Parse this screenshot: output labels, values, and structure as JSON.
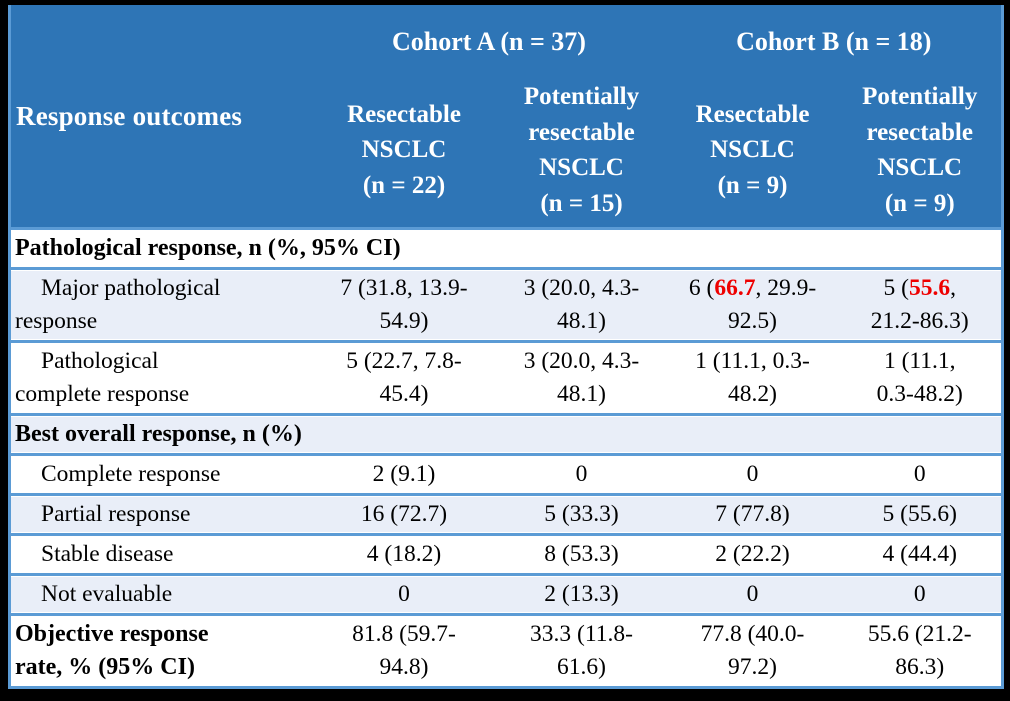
{
  "colors": {
    "header_bg": "#2E75B6",
    "band": "#E9EEF8",
    "grid": "#5B9BD5",
    "highlight": "#EE0000",
    "header_text": "#FFFFFF",
    "body_text": "#000000",
    "frame": "#000000"
  },
  "header": {
    "response_outcomes": "Response outcomes",
    "cohort_a": "Cohort A (n = 37)",
    "cohort_b": "Cohort B (n = 18)",
    "subheaders": [
      "Resectable\nNSCLC\n(n = 22)",
      "Potentially\nresectable\nNSCLC\n(n = 15)",
      "Resectable\nNSCLC\n(n = 9)",
      "Potentially\nresectable\nNSCLC\n(n = 9)"
    ]
  },
  "rows": [
    {
      "type": "section",
      "label": "Pathological response, n (%, 95% CI)"
    },
    {
      "type": "data",
      "label": "Major pathological\nresponse",
      "cells": [
        [
          "7 (31.8, 13.9-\n54.9)"
        ],
        [
          "3 (20.0, 4.3-\n48.1)"
        ],
        [
          "6 (",
          {
            "text": "66.7",
            "red": true
          },
          ", 29.9-\n92.5)"
        ],
        [
          "5 (",
          {
            "text": "55.6",
            "red": true
          },
          ",\n21.2-86.3)"
        ]
      ]
    },
    {
      "type": "data",
      "label": "Pathological\ncomplete response",
      "cells": [
        [
          "5 (22.7, 7.8-\n45.4)"
        ],
        [
          "3 (20.0, 4.3-\n48.1)"
        ],
        [
          "1 (11.1, 0.3-\n48.2)"
        ],
        [
          "1 (11.1,\n0.3-48.2)"
        ]
      ]
    },
    {
      "type": "section",
      "label": "Best overall response, n (%)"
    },
    {
      "type": "data",
      "label": "Complete response",
      "cells": [
        [
          "2 (9.1)"
        ],
        [
          "0"
        ],
        [
          "0"
        ],
        [
          "0"
        ]
      ]
    },
    {
      "type": "data",
      "label": "Partial response",
      "cells": [
        [
          "16 (72.7)"
        ],
        [
          "5 (33.3)"
        ],
        [
          "7 (77.8)"
        ],
        [
          "5 (55.6)"
        ]
      ]
    },
    {
      "type": "data",
      "label": "Stable disease",
      "cells": [
        [
          "4 (18.2)"
        ],
        [
          "8 (53.3)"
        ],
        [
          "2 (22.2)"
        ],
        [
          "4 (44.4)"
        ]
      ]
    },
    {
      "type": "data",
      "label": "Not evaluable",
      "cells": [
        [
          "0"
        ],
        [
          "2 (13.3)"
        ],
        [
          "0"
        ],
        [
          "0"
        ]
      ]
    },
    {
      "type": "summary",
      "label": "Objective response\nrate, % (95% CI)",
      "cells": [
        [
          "81.8 (59.7-\n94.8)"
        ],
        [
          "33.3 (11.8-\n61.6)"
        ],
        [
          "77.8 (40.0-\n97.2)"
        ],
        [
          "55.6 (21.2-\n86.3)"
        ]
      ]
    }
  ]
}
